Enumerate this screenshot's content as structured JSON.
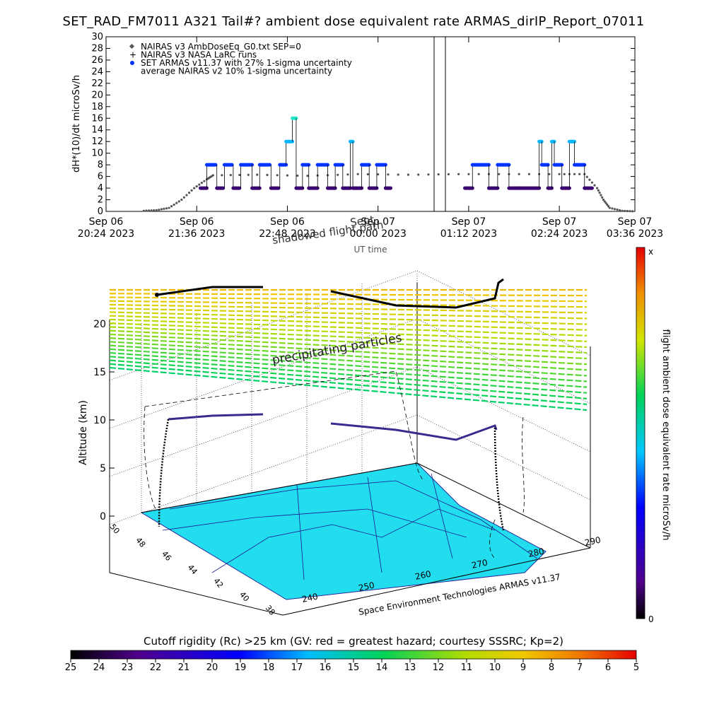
{
  "title": "SET_RAD_FM7011  A321 Tail#? ambient dose equivalent rate ARMAS_dirIP_Report_07011",
  "chart_data": [
    {
      "type": "scatter",
      "ylabel": "dH*(10)/dt microSv/h",
      "xlabel": "UT time",
      "ylim": [
        0,
        30
      ],
      "yticks": [
        0,
        2,
        4,
        6,
        8,
        10,
        12,
        14,
        16,
        18,
        20,
        22,
        24,
        26,
        28,
        30
      ],
      "xlim": [
        0,
        420
      ],
      "xticks": [
        {
          "x": 0,
          "top": "Sep 06",
          "bottom": "20:24 2023"
        },
        {
          "x": 72,
          "top": "Sep 06",
          "bottom": "21:36 2023"
        },
        {
          "x": 144,
          "top": "Sep 06",
          "bottom": "22:48 2023"
        },
        {
          "x": 216,
          "top": "Sep 07",
          "bottom": "00:00 2023"
        },
        {
          "x": 288,
          "top": "Sep 07",
          "bottom": "01:12 2023"
        },
        {
          "x": 360,
          "top": "Sep 07",
          "bottom": "02:24 2023"
        },
        {
          "x": 432,
          "top": "Sep 07",
          "bottom": "03:36 2023"
        }
      ],
      "legend": [
        "NAIRAS v3 AmbDoseEq_G0.txt SEP=0",
        "NAIRAS v3 NASA LaRC runs",
        "SET ARMAS v11.37 with 27% 1-sigma uncertainty",
        "average NAIRAS v2 10% 1-sigma uncertainty"
      ],
      "legend_position": "top-left",
      "overlay_text": [
        "shadowed flight path",
        "Sept"
      ],
      "nairas_v3": [
        [
          30,
          0.1
        ],
        [
          40,
          0.2
        ],
        [
          50,
          0.6
        ],
        [
          60,
          2.0
        ],
        [
          70,
          4.0
        ],
        [
          80,
          5.5
        ],
        [
          85,
          6.2
        ],
        [
          120,
          6.3
        ],
        [
          160,
          6.1
        ],
        [
          200,
          6.4
        ],
        [
          240,
          6.3
        ],
        [
          280,
          6.4
        ],
        [
          320,
          6.4
        ],
        [
          360,
          6.4
        ],
        [
          380,
          6.4
        ],
        [
          390,
          4.0
        ],
        [
          395,
          2.0
        ],
        [
          400,
          0.6
        ],
        [
          410,
          0.1
        ],
        [
          420,
          0.0
        ]
      ],
      "armas_segments": [
        [
          75,
          80,
          4
        ],
        [
          80,
          87,
          8
        ],
        [
          88,
          93,
          4
        ],
        [
          94,
          100,
          8
        ],
        [
          101,
          106,
          4
        ],
        [
          107,
          116,
          8
        ],
        [
          116,
          122,
          4
        ],
        [
          122,
          130,
          8
        ],
        [
          131,
          137,
          4
        ],
        [
          138,
          143,
          8
        ],
        [
          143,
          148,
          12
        ],
        [
          148,
          151,
          16
        ],
        [
          151,
          156,
          4
        ],
        [
          156,
          161,
          8
        ],
        [
          161,
          168,
          4
        ],
        [
          168,
          176,
          8
        ],
        [
          176,
          182,
          4
        ],
        [
          182,
          188,
          8
        ],
        [
          188,
          194,
          4
        ],
        [
          194,
          196,
          12
        ],
        [
          196,
          203,
          4
        ],
        [
          203,
          209,
          8
        ],
        [
          209,
          215,
          4
        ],
        [
          215,
          222,
          8
        ],
        [
          222,
          226,
          4
        ],
        [
          285,
          291,
          4
        ],
        [
          291,
          304,
          8
        ],
        [
          304,
          311,
          4
        ],
        [
          311,
          320,
          8
        ],
        [
          320,
          328,
          4
        ],
        [
          328,
          344,
          4
        ],
        [
          344,
          346,
          12
        ],
        [
          346,
          351,
          8
        ],
        [
          351,
          354,
          4
        ],
        [
          354,
          356,
          12
        ],
        [
          356,
          362,
          8
        ],
        [
          362,
          368,
          4
        ],
        [
          368,
          372,
          12
        ],
        [
          372,
          380,
          8
        ],
        [
          380,
          386,
          4
        ]
      ]
    },
    {
      "type": "surface-3d",
      "ylabel": "Altitude (km)",
      "zticks": [
        0,
        5,
        10,
        15,
        20
      ],
      "latitude_ticks": [
        38,
        40,
        42,
        44,
        46,
        48,
        50
      ],
      "longitude_ticks": [
        240,
        250,
        260,
        270,
        280,
        290
      ],
      "annotation": "precipitating particles",
      "credit": "Space Environment Technologies ARMAS v11.37",
      "flight_path": [
        [
          0.18,
          0.1
        ],
        [
          0.32,
          0.08
        ],
        [
          0.4,
          0.08
        ],
        [
          0.55,
          0.12
        ],
        [
          0.68,
          0.2
        ],
        [
          0.75,
          0.17
        ],
        [
          0.83,
          0.15
        ],
        [
          0.84,
          0.07
        ]
      ],
      "colorbar": {
        "label": "flight ambient dose equivalent rate microSv/h",
        "top": "x",
        "bottom": "0"
      }
    },
    {
      "type": "colorbar",
      "label": "Cutoff rigidity (Rc) >25 km (GV: red = greatest hazard; courtesy SSSRC; Kp=2)",
      "ticks": [
        "25",
        "24",
        "23",
        "22",
        "21",
        "20",
        "19",
        "18",
        "17",
        "16",
        "15",
        "14",
        "13",
        "12",
        "11",
        "10",
        "9",
        "8",
        "7",
        "6",
        "5"
      ]
    }
  ],
  "colors": {
    "nairas": "#555555",
    "armas_low": "#3a0070",
    "armas_mid": "#0033ff",
    "armas_high": "#00b6ff",
    "armas_peak": "#22e6c8",
    "ground": "#22ddee"
  }
}
